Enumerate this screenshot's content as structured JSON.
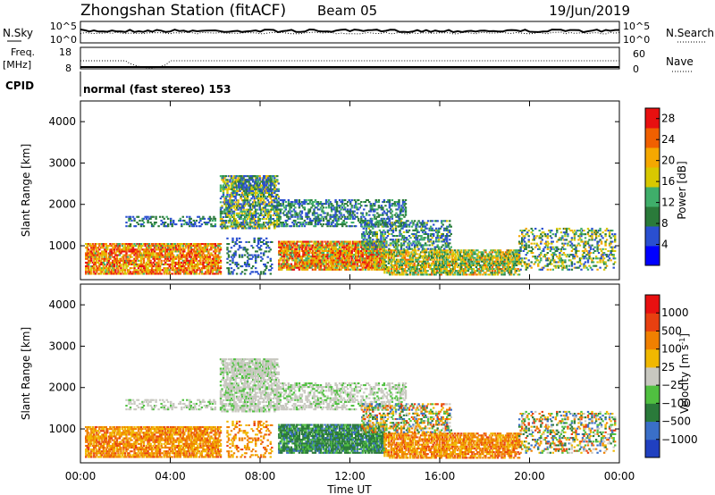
{
  "header": {
    "station": "Zhongshan Station (fitACF)",
    "beam": "Beam 05",
    "date": "19/Jun/2019"
  },
  "strips": {
    "nsky_label": "N.Sky",
    "nsky_ticks": [
      "10^5",
      "10^0"
    ],
    "nsearch_label": "N.Search",
    "nsearch_ticks": [
      "10^5",
      "10^0"
    ],
    "freq_label": "Freq.",
    "freq_unit": "[MHz]",
    "freq_ticks": [
      "18",
      "8"
    ],
    "nave_label": "Nave",
    "nave_ticks": [
      "60",
      "0"
    ],
    "cpid_label": "CPID",
    "cpid_text": "normal (fast stereo) 153"
  },
  "chart_data": [
    {
      "type": "heatmap",
      "panel": "power",
      "xlabel": "",
      "ylabel": "Slant Range [km]",
      "ylim": [
        180,
        4500
      ],
      "xlim": [
        0,
        24
      ],
      "y_ticks": [
        "1000",
        "2000",
        "3000",
        "4000"
      ],
      "y_tick_values": [
        1000,
        2000,
        3000,
        4000
      ],
      "colorbar": {
        "label": "Power [dB]",
        "ticks": [
          "4",
          "8",
          "12",
          "16",
          "20",
          "24",
          "28"
        ],
        "tick_values": [
          4,
          8,
          12,
          16,
          20,
          24,
          28
        ],
        "range": [
          0,
          30
        ],
        "colors": [
          "#0000ff",
          "#2a4fd0",
          "#2a7a3a",
          "#3fae6a",
          "#d8c800",
          "#f5a800",
          "#f06000",
          "#e81010"
        ]
      }
    },
    {
      "type": "heatmap",
      "panel": "velocity",
      "xlabel": "Time UT",
      "ylabel": "Slant Range [km]",
      "ylim": [
        180,
        4500
      ],
      "xlim": [
        0,
        24
      ],
      "y_ticks": [
        "1000",
        "2000",
        "3000",
        "4000"
      ],
      "y_tick_values": [
        1000,
        2000,
        3000,
        4000
      ],
      "x_ticks": [
        "00:00",
        "04:00",
        "08:00",
        "12:00",
        "16:00",
        "20:00",
        "00:00"
      ],
      "x_tick_values": [
        0,
        4,
        8,
        12,
        16,
        20,
        24
      ],
      "colorbar": {
        "label": "Velocity [m s",
        "label_sup": "-1",
        "label_close": "]",
        "ticks": [
          "1000",
          "500",
          "100",
          "25",
          "−25",
          "−100",
          "−500",
          "−1000"
        ],
        "colors": [
          "#2040c0",
          "#3a6fc8",
          "#2a7a3a",
          "#50c040",
          "#c8c8c0",
          "#f0b800",
          "#f08000",
          "#e84010",
          "#e81010"
        ]
      }
    }
  ]
}
